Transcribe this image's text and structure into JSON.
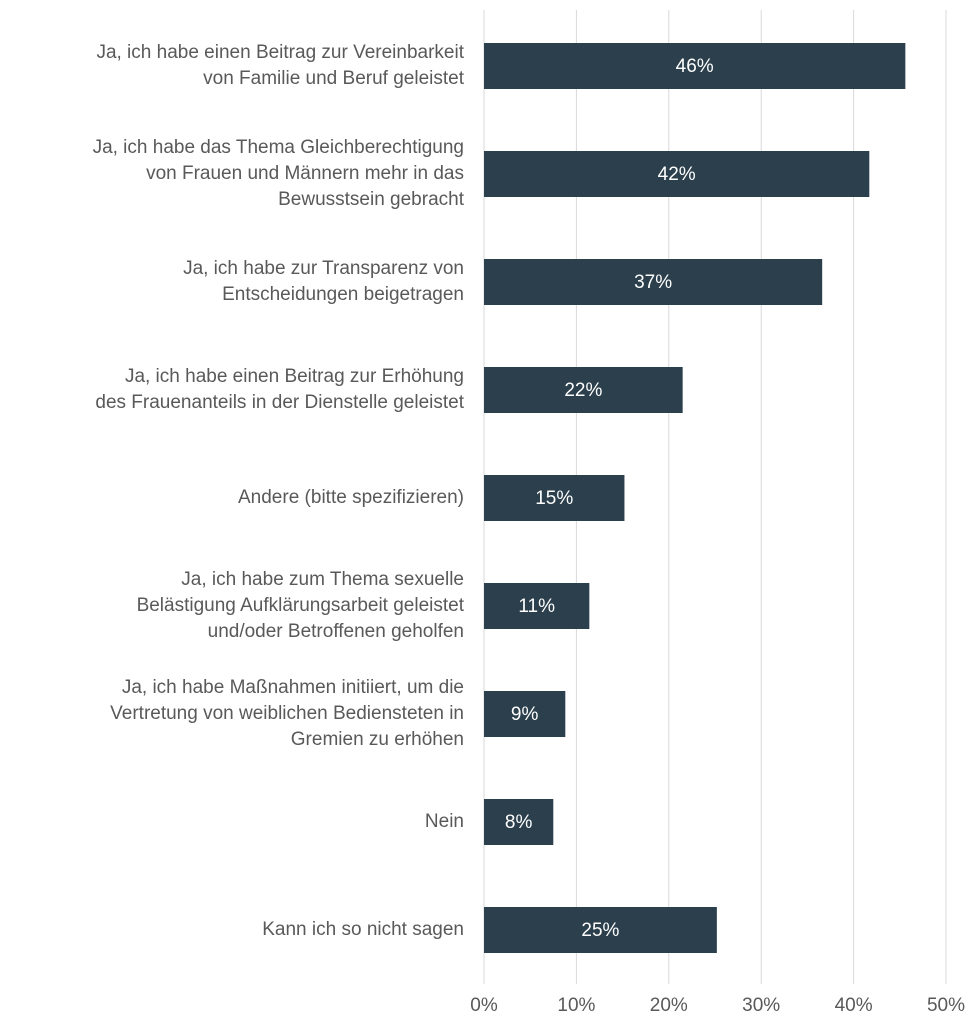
{
  "chart_data": {
    "type": "hbar",
    "categories": [
      "Ja, ich habe einen Beitrag zur Vereinbarkeit\nvon Familie und Beruf geleistet",
      "Ja, ich habe das Thema Gleichberechtigung\nvon Frauen und Männern mehr in das\nBewusstsein gebracht",
      "Ja, ich habe zur Transparenz von\nEntscheidungen beigetragen",
      "Ja, ich habe einen Beitrag zur Erhöhung\ndes Frauenanteils in der Dienstelle geleistet",
      "Andere (bitte spezifizieren)",
      "Ja, ich habe zum Thema sexuelle\nBelästigung Aufklärungsarbeit geleistet\nund/oder Betroffenen geholfen",
      "Ja, ich habe Maßnahmen initiiert, um die\nVertretung von weiblichen Bediensteten in\nGremien zu erhöhen",
      "Nein",
      "Kann ich so nicht sagen"
    ],
    "values": [
      45.6,
      41.7,
      36.6,
      21.5,
      15.2,
      11.4,
      8.8,
      7.5,
      25.2
    ],
    "value_labels": [
      "46%",
      "42%",
      "37%",
      "22%",
      "15%",
      "11%",
      "9%",
      "8%",
      "25%"
    ],
    "color": "#2b3f4c",
    "xlim": [
      0,
      50
    ],
    "xticks": [
      {
        "value": 0,
        "label": "0%"
      },
      {
        "value": 10,
        "label": "10%"
      },
      {
        "value": 20,
        "label": "20%"
      },
      {
        "value": 30,
        "label": "30%"
      },
      {
        "value": 40,
        "label": "40%"
      },
      {
        "value": 50,
        "label": "50%"
      }
    ],
    "grid": true
  }
}
